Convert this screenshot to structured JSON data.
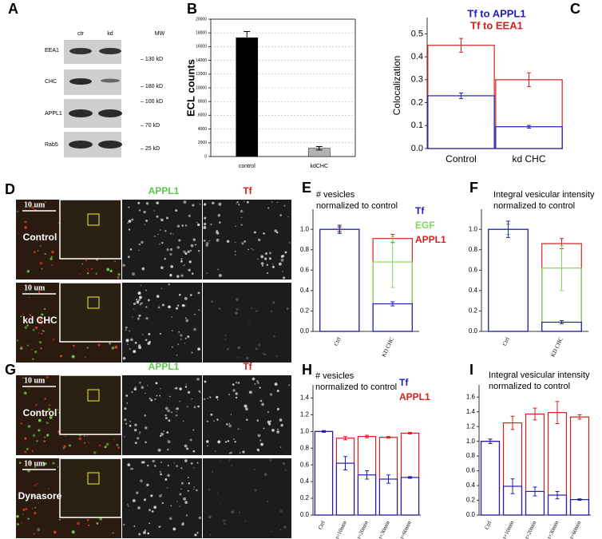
{
  "panel_labels": [
    "A",
    "B",
    "C",
    "D",
    "E",
    "F",
    "G",
    "H",
    "I"
  ],
  "blot": {
    "columns": [
      "ctr",
      "kd"
    ],
    "mw_header": "MW",
    "rows": [
      "EEA1",
      "CHC",
      "APPL1",
      "Rab5"
    ],
    "mw_markers": [
      "– 130 kD",
      "– 180 kD",
      "– 100 kD",
      "– 70 kD",
      "– 25 kD"
    ]
  },
  "micrographs": [
    {
      "channels": [
        "APPL1",
        "Tf"
      ],
      "rows": [
        "Control",
        "kd CHC"
      ],
      "scale_bar": "10 um"
    },
    {
      "channels": [
        "APPL1",
        "Tf"
      ],
      "rows": [
        "Control",
        "Dynasore"
      ],
      "scale_bar": "10 um"
    }
  ],
  "chart_data": [
    {
      "type": "bar",
      "ylabel": "ECL counts",
      "categories": [
        "control",
        "kdCHC"
      ],
      "values": [
        17300,
        1200
      ],
      "errors": [
        900,
        250
      ],
      "colors": [
        "#000000",
        "#b3b3b3"
      ],
      "ylim": [
        0,
        20000
      ],
      "yticks": [
        0,
        2000,
        4000,
        6000,
        8000,
        10000,
        12000,
        14000,
        16000,
        18000,
        20000
      ],
      "grid": true
    },
    {
      "type": "overlap_bar",
      "ylabel": "Colocalization",
      "categories": [
        "Control",
        "kd CHC"
      ],
      "series": [
        {
          "name": "Tf to APPL1",
          "color": "#1f1fb4",
          "values": [
            0.23,
            0.095
          ],
          "errors": [
            0.012,
            0.006
          ]
        },
        {
          "name": "Tf to EEA1",
          "color": "#d62020",
          "values": [
            0.45,
            0.3
          ],
          "errors": [
            0.03,
            0.03
          ]
        }
      ],
      "ylim": [
        0,
        0.55
      ],
      "yticks": [
        {
          "value": 0,
          "label": "0.0"
        },
        0.1,
        0.2,
        0.3,
        0.4,
        0.5
      ],
      "legend": "top"
    },
    {
      "type": "overlap_bar",
      "title_lines": [
        "# vesicles",
        "normalized to control"
      ],
      "categories": [
        "Ctrl",
        "KD CHC"
      ],
      "series": [
        {
          "name": "Tf",
          "color": "#1f1fb4",
          "values": [
            1.0,
            0.27
          ],
          "errors": [
            0.04,
            0.02
          ]
        },
        {
          "name": "EGF",
          "color": "#7ed957",
          "values": [
            1.0,
            0.68
          ],
          "errors": [
            0.03,
            0.25
          ]
        },
        {
          "name": "APPL1",
          "color": "#d62020",
          "values": [
            1.0,
            0.91
          ],
          "errors": [
            0.02,
            0.04
          ]
        }
      ],
      "ylim": [
        0,
        1.15
      ],
      "yticks": [
        {
          "value": 0,
          "label": "0.0"
        },
        0.2,
        0.4,
        0.6,
        0.8,
        {
          "value": 1,
          "label": "1.0"
        }
      ],
      "legend": "right"
    },
    {
      "type": "overlap_bar",
      "title_lines": [
        "Integral vesicular intensity",
        "normalized to control"
      ],
      "categories": [
        "Ctrl",
        "KD CHC"
      ],
      "series": [
        {
          "name": "Tf",
          "color": "#1f1fb4",
          "values": [
            1.0,
            0.09
          ],
          "errors": [
            0.08,
            0.015
          ]
        },
        {
          "name": "EGF",
          "color": "#7ed957",
          "values": [
            1.0,
            0.62
          ],
          "errors": [
            0.05,
            0.22
          ]
        },
        {
          "name": "APPL1",
          "color": "#d62020",
          "values": [
            1.0,
            0.86
          ],
          "errors": [
            0.05,
            0.05
          ]
        }
      ],
      "ylim": [
        0,
        1.15
      ],
      "yticks": [
        {
          "value": 0,
          "label": "0.0"
        },
        0.2,
        0.4,
        0.6,
        0.8,
        {
          "value": 1,
          "label": "1.0"
        }
      ],
      "legend": "none"
    },
    {
      "type": "overlap_bar",
      "title_lines": [
        "# vesicles",
        "normalized to control"
      ],
      "categories": [
        "Ctrl",
        "t=10min",
        "t=20min",
        "t=30min",
        "t=60min"
      ],
      "series": [
        {
          "name": "Tf",
          "color": "#1f1fb4",
          "values": [
            1.0,
            0.62,
            0.48,
            0.43,
            0.45
          ],
          "errors": [
            0.01,
            0.08,
            0.05,
            0.05,
            0.01
          ]
        },
        {
          "name": "APPL1",
          "color": "#d62020",
          "values": [
            1.0,
            0.92,
            0.94,
            0.93,
            0.98
          ],
          "errors": [
            0.01,
            0.02,
            0.015,
            0.01,
            0.01
          ]
        }
      ],
      "ylim": [
        0,
        1.5
      ],
      "yticks": [
        {
          "value": 0,
          "label": "0.0"
        },
        0.2,
        0.4,
        0.6,
        0.8,
        {
          "value": 1,
          "label": "1.0"
        },
        1.2,
        1.4
      ],
      "legend": "right"
    },
    {
      "type": "overlap_bar",
      "title_lines": [
        "Integral vesicular intensity",
        "normalized to control"
      ],
      "categories": [
        "Ctrl",
        "t=10min",
        "t=20min",
        "t=30min",
        "t=60min"
      ],
      "series": [
        {
          "name": "Tf",
          "color": "#1f1fb4",
          "values": [
            1.0,
            0.39,
            0.32,
            0.27,
            0.21
          ],
          "errors": [
            0.03,
            0.1,
            0.06,
            0.05,
            0.01
          ]
        },
        {
          "name": "APPL1",
          "color": "#d62020",
          "values": [
            1.0,
            1.25,
            1.37,
            1.39,
            1.33
          ],
          "errors": [
            0.03,
            0.09,
            0.08,
            0.15,
            0.03
          ]
        }
      ],
      "ylim": [
        0,
        1.7
      ],
      "yticks": [
        {
          "value": 0,
          "label": "0.0"
        },
        0.2,
        0.4,
        0.6,
        0.8,
        {
          "value": 1,
          "label": "1.0"
        },
        1.2,
        1.4,
        1.6
      ],
      "legend": "none"
    }
  ]
}
